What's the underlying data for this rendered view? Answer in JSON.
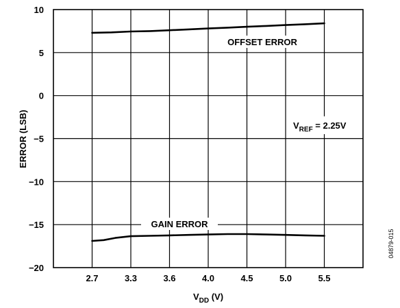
{
  "chart_data": {
    "type": "line",
    "xlabel": "V",
    "xlabel_sub": "DD",
    "xlabel_unit": " (V)",
    "ylabel": "ERROR (LSB)",
    "categories": [
      "2.7",
      "3.3",
      "3.6",
      "4.0",
      "4.5",
      "5.0",
      "5.5"
    ],
    "y_ticks": [
      "10",
      "5",
      "0",
      "−5",
      "−10",
      "−15",
      "−20"
    ],
    "y_tick_values": [
      10,
      5,
      0,
      -5,
      -10,
      -15,
      -20
    ],
    "ylim": [
      -20,
      10
    ],
    "grid": true,
    "series": [
      {
        "name": "OFFSET ERROR",
        "x": [
          0,
          0.5,
          1,
          1.5,
          2,
          2.5,
          3,
          3.5,
          4,
          4.5,
          5,
          5.5,
          6
        ],
        "values": [
          7.3,
          7.35,
          7.45,
          7.5,
          7.6,
          7.7,
          7.8,
          7.9,
          8.0,
          8.1,
          8.2,
          8.3,
          8.4
        ]
      },
      {
        "name": "GAIN ERROR",
        "x": [
          0,
          0.3,
          0.6,
          1.0,
          1.5,
          2.0,
          2.5,
          3.0,
          3.5,
          4.0,
          4.5,
          5.0,
          5.5,
          6.0
        ],
        "values": [
          -16.9,
          -16.8,
          -16.55,
          -16.35,
          -16.3,
          -16.25,
          -16.2,
          -16.15,
          -16.1,
          -16.1,
          -16.15,
          -16.2,
          -16.25,
          -16.3
        ]
      }
    ],
    "annotations": {
      "vref_main": "V",
      "vref_sub": "REF",
      "vref_rest": " = 2.25V"
    },
    "figure_id": "04879-015"
  }
}
